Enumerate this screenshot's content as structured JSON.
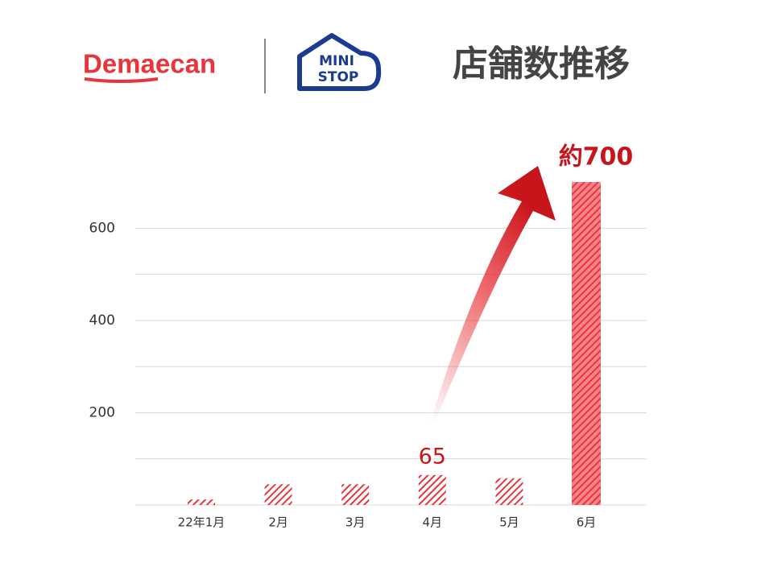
{
  "chart_data": {
    "type": "bar",
    "title": "店舗数推移",
    "brands": [
      "Demaecan",
      "MINI",
      "STOP"
    ],
    "categories": [
      "22年1月",
      "2月",
      "3月",
      "4月",
      "5月",
      "6月"
    ],
    "values": [
      12,
      45,
      45,
      65,
      58,
      700
    ],
    "value_labels": [
      null,
      null,
      null,
      "65",
      null,
      "約700"
    ],
    "color": "#e8343a",
    "ylim": [
      0,
      735
    ],
    "yticks": [
      {
        "value": 0,
        "label": null
      },
      {
        "value": 100,
        "label": null
      },
      200,
      {
        "value": 300,
        "label": null
      },
      400,
      {
        "value": 500,
        "label": null
      },
      600
    ],
    "grid": true
  }
}
